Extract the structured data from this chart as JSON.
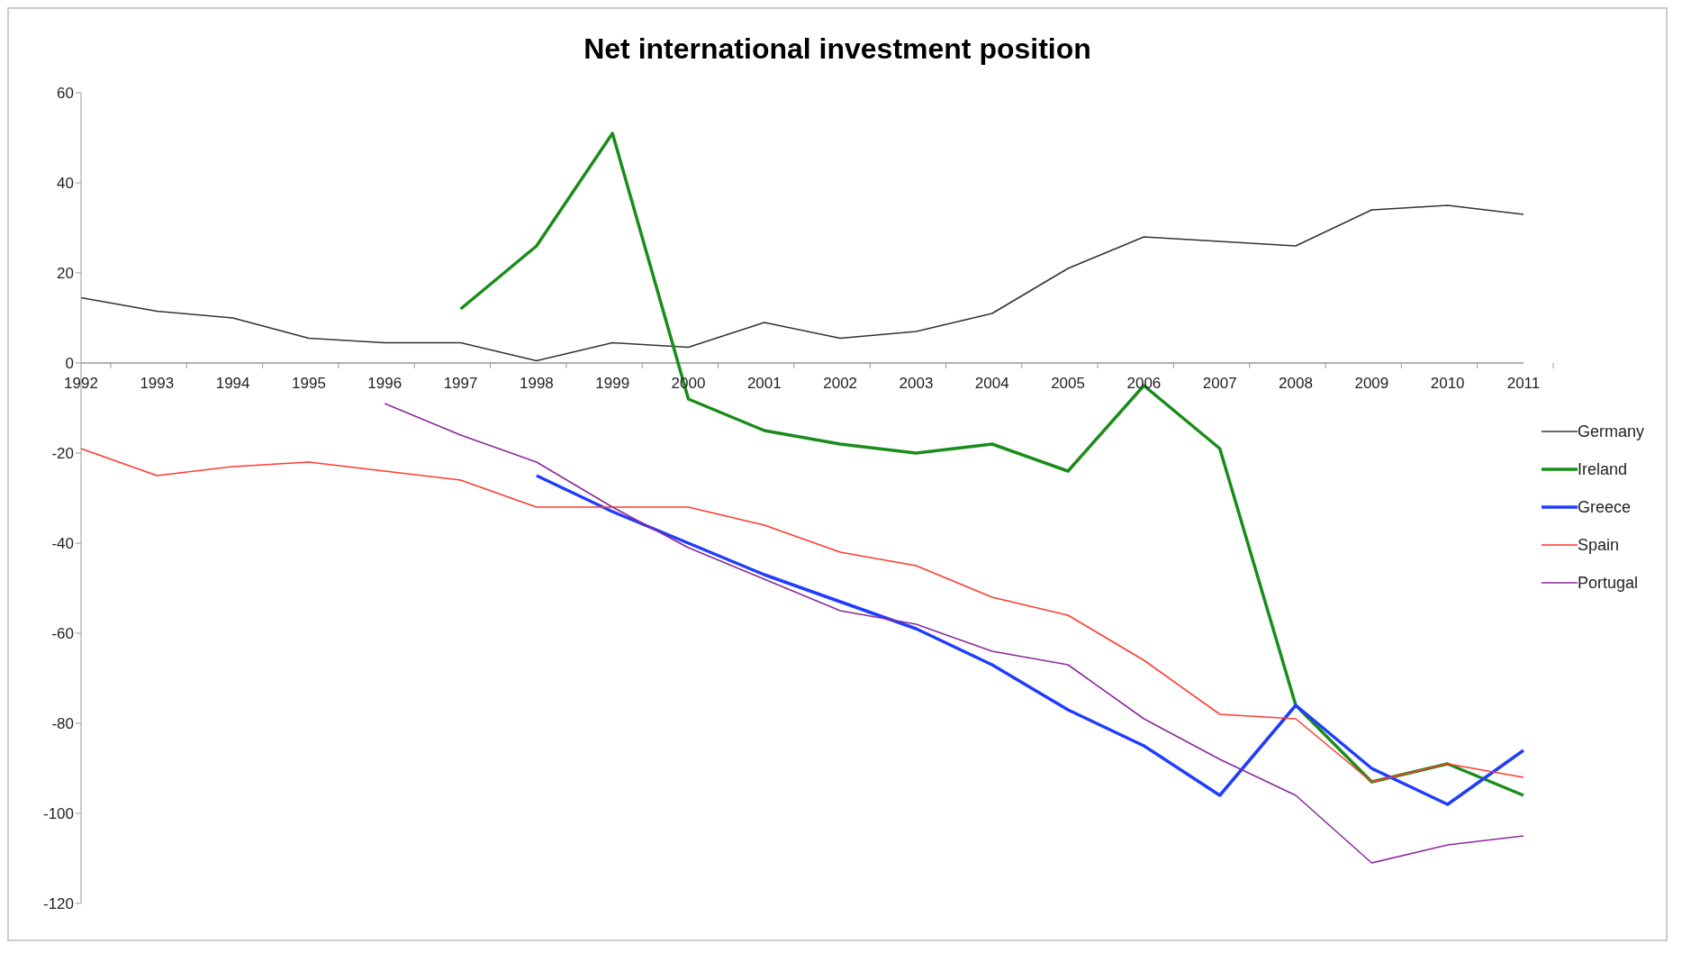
{
  "chart_data": {
    "type": "line",
    "title": "Net international investment position",
    "categories": [
      "1992",
      "1993",
      "1994",
      "1995",
      "1996",
      "1997",
      "1998",
      "1999",
      "2000",
      "2001",
      "2002",
      "2003",
      "2004",
      "2005",
      "2006",
      "2007",
      "2008",
      "2009",
      "2010",
      "2011"
    ],
    "series": [
      {
        "name": "Germany",
        "color": "#333333",
        "values": [
          14.5,
          11.5,
          10,
          5.5,
          4.5,
          4.5,
          0.5,
          4.5,
          3.5,
          9,
          5.5,
          7,
          11,
          21,
          28,
          27,
          26,
          34,
          35,
          33
        ]
      },
      {
        "name": "Ireland",
        "color": "#1a8c1a",
        "values": [
          null,
          null,
          null,
          null,
          null,
          12,
          26,
          51,
          -8,
          -15,
          -18,
          -20,
          -18,
          -24,
          -5,
          -19,
          -76,
          -93,
          -89,
          -96
        ]
      },
      {
        "name": "Greece",
        "color": "#1f3cff",
        "values": [
          null,
          null,
          null,
          null,
          null,
          null,
          -25,
          -33,
          -40,
          -47,
          -53,
          -59,
          -67,
          -77,
          -85,
          -96,
          -76,
          -90,
          -98,
          -86
        ]
      },
      {
        "name": "Spain",
        "color": "#ff3b2f",
        "values": [
          -19,
          -25,
          -23,
          -22,
          -24,
          -26,
          -32,
          -32,
          -32,
          -36,
          -42,
          -45,
          -52,
          -56,
          -66,
          -78,
          -79,
          -93,
          -89,
          -92
        ]
      },
      {
        "name": "Portugal",
        "color": "#8b2a9b",
        "values": [
          null,
          null,
          null,
          null,
          -9,
          -16,
          -22,
          -32,
          -41,
          -48,
          -55,
          -58,
          -64,
          -67,
          -79,
          -88,
          -96,
          -111,
          -107,
          -105
        ]
      }
    ],
    "ylim": [
      -120,
      60
    ],
    "yticks": [
      -120,
      -100,
      -80,
      -60,
      -40,
      -20,
      0,
      20,
      40,
      60
    ],
    "legend": "right",
    "marker": "none",
    "line_style": "solid"
  }
}
